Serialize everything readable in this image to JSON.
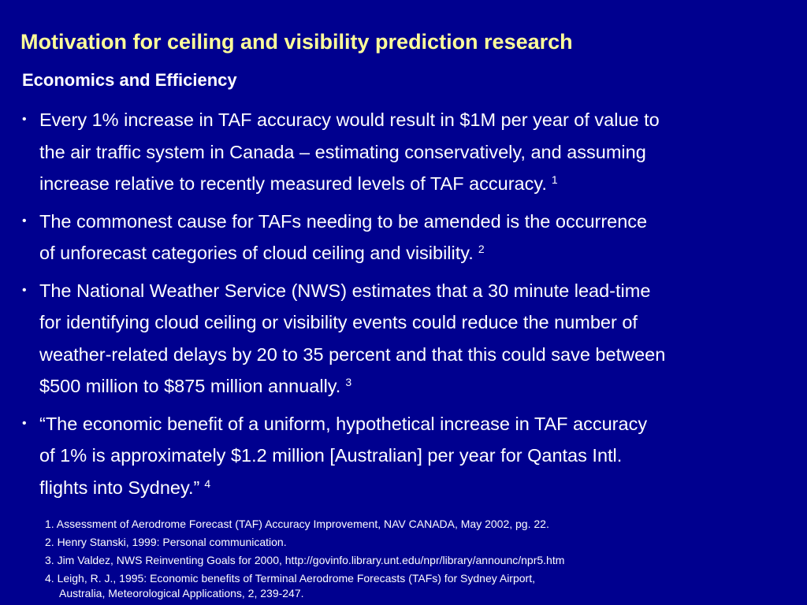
{
  "slide": {
    "title": "Motivation for ceiling and visibility prediction research",
    "subtitle": "Economics and Efficiency",
    "bullet_symbol": "•",
    "bullets": [
      {
        "lines": [
          "Every 1% increase in TAF accuracy would result in $1M per year of value to",
          "the air traffic system in Canada – estimating conservatively, and assuming",
          "increase relative to recently measured levels of TAF accuracy."
        ],
        "ref": "1"
      },
      {
        "lines": [
          "The commonest cause for TAFs needing to be amended is the occurrence",
          "of unforecast categories of cloud ceiling and visibility."
        ],
        "ref": "2"
      },
      {
        "lines": [
          "The National Weather Service (NWS) estimates that a 30 minute lead-time",
          "for identifying cloud ceiling or visibility events could reduce the number of",
          "weather-related delays by 20 to 35 percent and that this could save between",
          "$500 million to $875 million annually."
        ],
        "ref": "3"
      },
      {
        "lines": [
          "“The economic benefit of a uniform, hypothetical increase in TAF accuracy",
          "of 1% is approximately $1.2 million [Australian] per year for Qantas Intl.",
          "flights into Sydney.”"
        ],
        "ref": "4"
      }
    ],
    "references": [
      {
        "lines": [
          "1. Assessment of Aerodrome Forecast (TAF) Accuracy Improvement, NAV CANADA, May 2002, pg. 22."
        ]
      },
      {
        "lines": [
          "2. Henry Stanski, 1999: Personal communication."
        ]
      },
      {
        "lines": [
          "3. Jim Valdez, NWS Reinventing Goals for 2000, http://govinfo.library.unt.edu/npr/library/announc/npr5.htm"
        ]
      },
      {
        "lines": [
          "4. Leigh, R. J., 1995: Economic benefits of Terminal Aerodrome Forecasts (TAFs) for Sydney Airport,",
          "Australia, Meteorological Applications, 2, 239-247."
        ]
      }
    ],
    "colors": {
      "background": "#00008f",
      "title": "#ffff99",
      "text": "#ffffff"
    }
  }
}
